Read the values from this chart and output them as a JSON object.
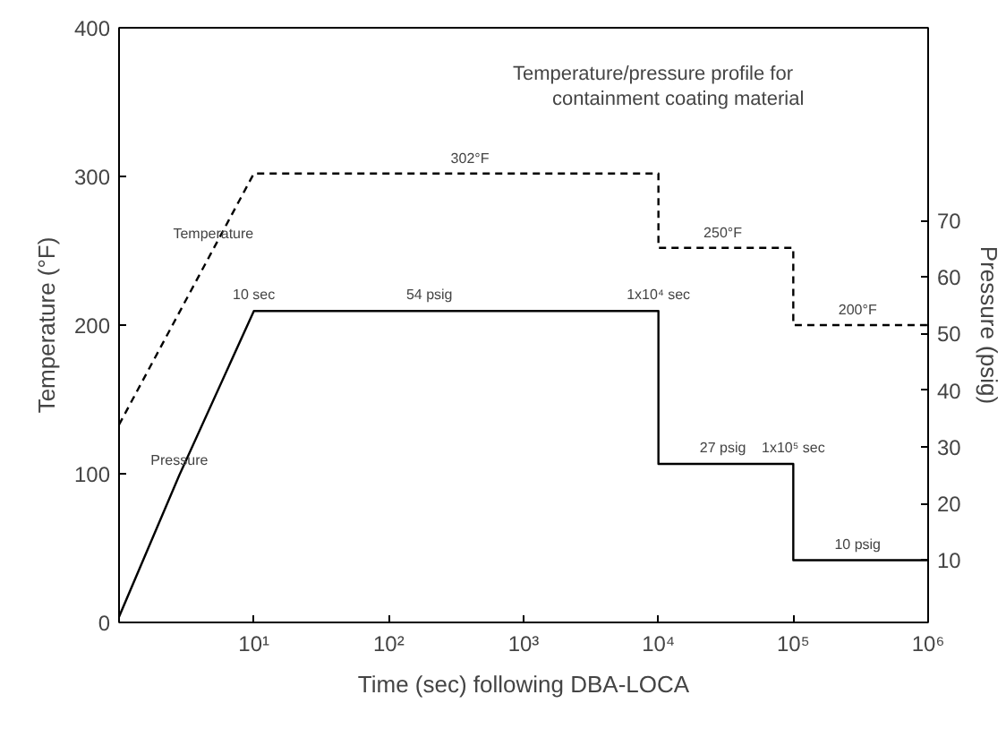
{
  "chart_data": {
    "type": "line",
    "title": "Temperature/pressure profile for\ncontainment coating material",
    "xlabel": "Time (sec) following DBA-LOCA",
    "ylabel": "Temperature (°F)",
    "y2label": "Pressure (psig)",
    "log": "x",
    "xlim": [
      1,
      1000000
    ],
    "xticks": [
      {
        "value": 1,
        "label": null
      },
      {
        "value": 10,
        "label": "10¹"
      },
      {
        "value": 100,
        "label": "10²"
      },
      {
        "value": 1000,
        "label": "10³"
      },
      {
        "value": 10000,
        "label": "10⁴"
      },
      {
        "value": 100000,
        "label": "10⁵"
      },
      {
        "value": 1000000,
        "label": "10⁶"
      }
    ],
    "ylim": [
      0,
      400
    ],
    "yticks": [
      0,
      100,
      200,
      300,
      400
    ],
    "y2lim": [
      -1,
      104
    ],
    "y2ticks": [
      10,
      20,
      30,
      40,
      50,
      60,
      70
    ],
    "grid": false,
    "series": [
      {
        "color": "#000000",
        "line_style": "dashed",
        "x": [
          1,
          10,
          10000,
          10000,
          100000,
          100000,
          1000000
        ],
        "values": [
          133,
          302,
          302,
          252,
          252,
          200,
          200
        ]
      },
      {
        "color": "#000000",
        "line_style": "solid",
        "axis": "y2",
        "x": [
          1,
          2.8,
          10,
          10000,
          10000,
          100000,
          100000,
          1000000
        ],
        "values": [
          0,
          25,
          54,
          54,
          27,
          27,
          10,
          10
        ]
      }
    ],
    "annotations": [
      {
        "text": "302°F",
        "x": 400,
        "y": 302
      },
      {
        "text": "250°F",
        "x": 30000,
        "y": 252
      },
      {
        "text": "200°F",
        "x": 300000,
        "y": 200
      },
      {
        "text": "Temperature",
        "x": 5,
        "y": 251
      },
      {
        "text": "Pressure",
        "x": 2.8,
        "y": 99
      },
      {
        "text": "10 sec",
        "x": 10,
        "y": 210
      },
      {
        "text": "54 psig",
        "x": 200,
        "y": 210
      },
      {
        "text": "1x10⁴ sec",
        "x": 10000,
        "y": 210
      },
      {
        "text": "27 psig",
        "x": 30000,
        "y": 107
      },
      {
        "text": "1x10⁵ sec",
        "x": 100000,
        "y": 107
      },
      {
        "text": "10 psig",
        "x": 300000,
        "y": 42
      }
    ]
  }
}
